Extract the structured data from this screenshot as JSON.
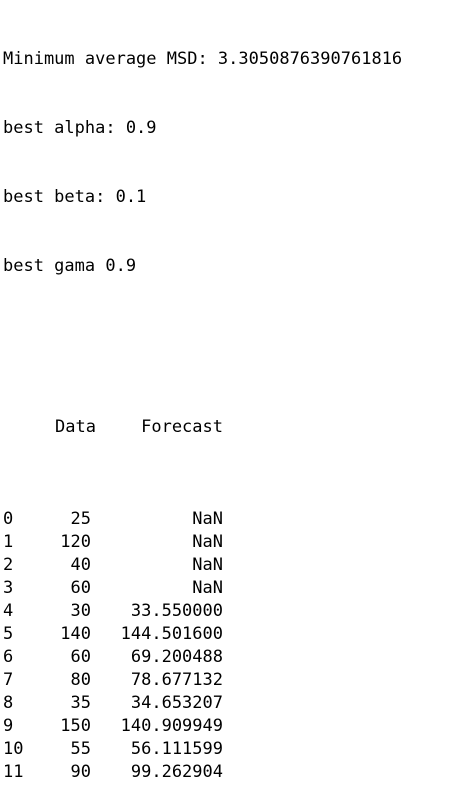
{
  "output": {
    "msd_line": "Minimum average MSD: 3.3050876390761816",
    "alpha_line": "best alpha: 0.9",
    "beta_line": "best beta: 0.1",
    "gama_line": "best gama 0.9"
  },
  "table": {
    "columns": [
      "Data",
      "Forecast"
    ],
    "rows": [
      {
        "index": "0",
        "data": "25",
        "forecast": "NaN"
      },
      {
        "index": "1",
        "data": "120",
        "forecast": "NaN"
      },
      {
        "index": "2",
        "data": "40",
        "forecast": "NaN"
      },
      {
        "index": "3",
        "data": "60",
        "forecast": "NaN"
      },
      {
        "index": "4",
        "data": "30",
        "forecast": "33.550000"
      },
      {
        "index": "5",
        "data": "140",
        "forecast": "144.501600"
      },
      {
        "index": "6",
        "data": "60",
        "forecast": "69.200488"
      },
      {
        "index": "7",
        "data": "80",
        "forecast": "78.677132"
      },
      {
        "index": "8",
        "data": "35",
        "forecast": "34.653207"
      },
      {
        "index": "9",
        "data": "150",
        "forecast": "140.909949"
      },
      {
        "index": "10",
        "data": "55",
        "forecast": "56.111599"
      },
      {
        "index": "11",
        "data": "90",
        "forecast": "99.262904"
      }
    ]
  }
}
